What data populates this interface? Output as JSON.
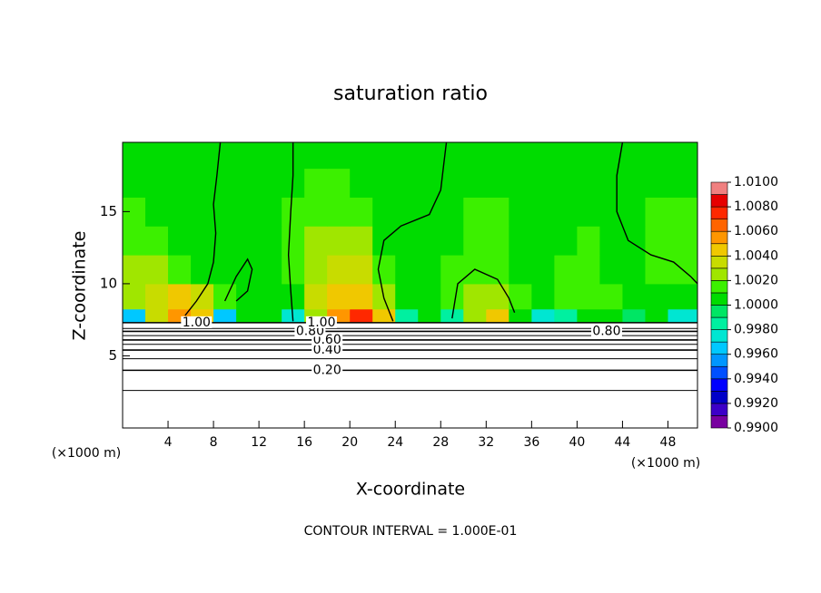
{
  "chart_data": {
    "type": "contour",
    "title": "saturation ratio",
    "x_label": "X-coordinate",
    "y_label": "Z-coordinate",
    "x_units": "(×1000 m)",
    "y_units": "(×1000 m)",
    "footer": "CONTOUR INTERVAL = 1.000E-01",
    "xlim": [
      0,
      50.6
    ],
    "ylim": [
      0,
      19.8
    ],
    "xticks": [
      4,
      8,
      12,
      16,
      20,
      24,
      28,
      32,
      36,
      40,
      44,
      48
    ],
    "yticks": [
      5,
      10,
      15
    ],
    "x": [
      1,
      3,
      5,
      7,
      9,
      11,
      13,
      15,
      17,
      19,
      21,
      23,
      25,
      27,
      29,
      31,
      33,
      35,
      37,
      39,
      41,
      43,
      45,
      47,
      49
    ],
    "z": [
      7.5,
      9,
      11,
      13,
      15,
      17,
      19
    ],
    "values": [
      [
        0.996,
        1.003,
        1.005,
        1.004,
        0.996,
        1.0,
        1.0,
        0.997,
        1.002,
        1.005,
        1.0075,
        1.004,
        0.998,
        1.0,
        0.998,
        1.002,
        1.004,
        1.0,
        0.997,
        0.998,
        1.0,
        1.0,
        0.999,
        1.0,
        0.997
      ],
      [
        1.002,
        1.003,
        1.004,
        1.003,
        1.001,
        1.0,
        1.0,
        1.0,
        1.003,
        1.004,
        1.004,
        1.002,
        1.0,
        1.0,
        1.001,
        1.002,
        1.002,
        1.001,
        1.0,
        1.001,
        1.001,
        1.001,
        1.0,
        1.0,
        1.0
      ],
      [
        1.002,
        1.002,
        1.001,
        1.0,
        1.0,
        1.0,
        1.0,
        1.001,
        1.002,
        1.003,
        1.003,
        1.001,
        1.0,
        1.0,
        1.001,
        1.001,
        1.001,
        1.0,
        1.0,
        1.001,
        1.001,
        1.0,
        1.0,
        1.001,
        1.001
      ],
      [
        1.001,
        1.001,
        1.0,
        1.0,
        1.0,
        1.0,
        1.0,
        1.001,
        1.002,
        1.002,
        1.002,
        1.0,
        1.0,
        1.0,
        1.0,
        1.001,
        1.001,
        1.0,
        1.0,
        1.0,
        1.001,
        1.0,
        1.0,
        1.001,
        1.001
      ],
      [
        1.001,
        1.0,
        1.0,
        1.0,
        1.0,
        1.0,
        1.0,
        1.001,
        1.001,
        1.001,
        1.001,
        1.0,
        1.0,
        1.0,
        1.0,
        1.001,
        1.001,
        1.0,
        1.0,
        1.0,
        1.0,
        1.0,
        1.0,
        1.001,
        1.001
      ],
      [
        1.0,
        1.0,
        1.0,
        1.0,
        1.0,
        1.0,
        1.0,
        1.0,
        1.001,
        1.001,
        1.0,
        1.0,
        1.0,
        1.0,
        1.0,
        1.0,
        1.0,
        1.0,
        1.0,
        1.0,
        1.0,
        1.0,
        1.0,
        1.0,
        1.0
      ],
      [
        1.0,
        1.0,
        1.0,
        1.0,
        1.0,
        1.0,
        1.0,
        1.0,
        1.0,
        1.0,
        1.0,
        1.0,
        1.0,
        1.0,
        1.0,
        1.0,
        1.0,
        1.0,
        1.0,
        1.0,
        1.0,
        1.0,
        1.0,
        1.0,
        1.0
      ]
    ],
    "color_levels": [
      0.99,
      0.991,
      0.992,
      0.993,
      0.994,
      0.995,
      0.996,
      0.997,
      0.998,
      0.999,
      1.0,
      1.001,
      1.002,
      1.003,
      1.004,
      1.005,
      1.006,
      1.007,
      1.008,
      1.009,
      1.01
    ],
    "colors": [
      "#7800a0",
      "#3c00c8",
      "#0000c8",
      "#0000ff",
      "#0050ff",
      "#0096ff",
      "#00c8ff",
      "#00e6d2",
      "#00f0a0",
      "#00e664",
      "#00dc00",
      "#3cf000",
      "#a0e600",
      "#c8dc00",
      "#f0c800",
      "#ff9600",
      "#ff6400",
      "#ff2800",
      "#e60000",
      "#f08080"
    ],
    "colorbar_ticks": [
      {
        "value": 0.99,
        "label": "0.9900"
      },
      {
        "value": 0.992,
        "label": "0.9920"
      },
      {
        "value": 0.994,
        "label": "0.9940"
      },
      {
        "value": 0.996,
        "label": "0.9960"
      },
      {
        "value": 0.998,
        "label": "0.9980"
      },
      {
        "value": 1.0,
        "label": "1.0000"
      },
      {
        "value": 1.002,
        "label": "1.0020"
      },
      {
        "value": 1.004,
        "label": "1.0040"
      },
      {
        "value": 1.006,
        "label": "1.0060"
      },
      {
        "value": 1.008,
        "label": "1.0080"
      },
      {
        "value": 1.01,
        "label": "1.0100"
      }
    ],
    "contours": [
      {
        "level": 0.1,
        "z": 2.6
      },
      {
        "level": 0.2,
        "z": 4.0,
        "label": "0.20",
        "label_x": [
          18
        ]
      },
      {
        "level": 0.3,
        "z": 4.8
      },
      {
        "level": 0.4,
        "z": 5.4,
        "label": "0.40",
        "label_x": [
          18
        ]
      },
      {
        "level": 0.5,
        "z": 5.8
      },
      {
        "level": 0.6,
        "z": 6.1,
        "label": "0.60",
        "label_x": [
          18
        ]
      },
      {
        "level": 0.7,
        "z": 6.4
      },
      {
        "level": 0.8,
        "z": 6.7,
        "label": "0.80",
        "label_x": [
          16.5,
          42.6
        ]
      },
      {
        "level": 0.9,
        "z": 6.9
      },
      {
        "level": 1.0,
        "z": 7.3,
        "label": "1.00",
        "label_x": [
          17.5,
          6.5
        ]
      }
    ],
    "lines": [
      {
        "level": 1.0,
        "x": [
          5.5,
          6.5,
          7.5,
          8.0,
          8.2,
          8.0,
          8.3,
          8.6
        ],
        "z": [
          7.8,
          8.8,
          10.0,
          11.5,
          13.5,
          15.5,
          17.5,
          19.8
        ]
      },
      {
        "level": 1.0,
        "x": [
          15.0,
          14.8,
          14.6,
          14.8,
          15.0,
          15.0
        ],
        "z": [
          7.4,
          9.5,
          12.0,
          15.0,
          17.5,
          19.8
        ]
      },
      {
        "level": 1.0,
        "x": [
          23.8,
          23.0,
          22.5,
          23.0,
          24.5,
          27.0,
          28.0,
          28.3,
          28.5
        ],
        "z": [
          7.4,
          9.0,
          11.0,
          13.0,
          14.0,
          14.8,
          16.5,
          18.5,
          19.8
        ]
      },
      {
        "level": 1.0,
        "x": [
          44.0,
          43.5,
          43.5,
          44.5,
          46.5,
          48.5,
          50.0,
          50.6
        ],
        "z": [
          19.8,
          17.5,
          15.0,
          13.0,
          12.0,
          11.5,
          10.5,
          10.0
        ]
      },
      {
        "level": 1.0,
        "x": [
          29.0,
          29.5,
          31.0,
          33.0,
          34.0,
          34.5
        ],
        "z": [
          7.6,
          10.0,
          11.0,
          10.3,
          9.0,
          8.0
        ]
      },
      {
        "level": 1.0,
        "x": [
          9.0,
          10.0,
          11.0,
          11.4,
          11.0,
          10.0
        ],
        "z": [
          8.8,
          10.5,
          11.7,
          11.0,
          9.5,
          8.8
        ]
      }
    ]
  }
}
